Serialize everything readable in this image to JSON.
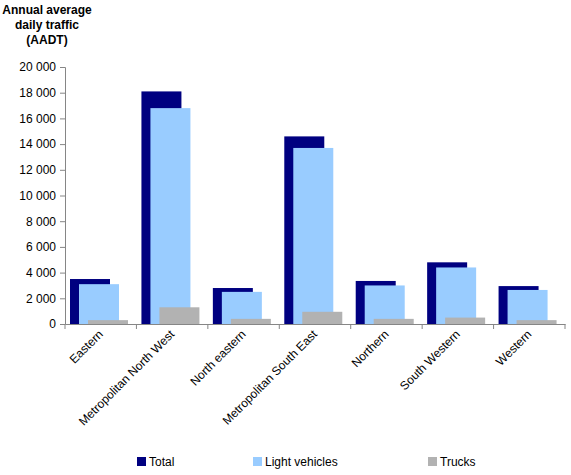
{
  "chart_data": {
    "type": "bar",
    "y_label": [
      "Annual average",
      "daily traffic",
      "(AADT)"
    ],
    "categories": [
      "Eastern",
      "Metropolitan North West",
      "North eastern",
      "Metropolitan South East",
      "Northern",
      "South Western",
      "Western"
    ],
    "series": [
      {
        "name": "Total",
        "color": "#000080",
        "values": [
          3500,
          18100,
          2800,
          14600,
          3350,
          4800,
          2950
        ]
      },
      {
        "name": "Light vehicles",
        "color": "#99ccff",
        "values": [
          3100,
          16800,
          2500,
          13700,
          3000,
          4400,
          2650
        ]
      },
      {
        "name": "Trucks",
        "color": "#b2b2b2",
        "values": [
          300,
          1300,
          400,
          950,
          400,
          500,
          300
        ]
      }
    ],
    "ylim": [
      0,
      20000
    ],
    "yticks": [
      0,
      {
        "value": 2000,
        "label": "2 000"
      },
      {
        "value": 4000,
        "label": "4 000"
      },
      {
        "value": 6000,
        "label": "6 000"
      },
      {
        "value": 8000,
        "label": "8 000"
      },
      {
        "value": 10000,
        "label": "10 000"
      },
      {
        "value": 12000,
        "label": "12 000"
      },
      {
        "value": 14000,
        "label": "14 000"
      },
      {
        "value": 16000,
        "label": "16 000"
      },
      {
        "value": 18000,
        "label": "18 000"
      },
      {
        "value": 20000,
        "label": "20 000"
      }
    ],
    "grid": false,
    "legend": "bottom"
  }
}
